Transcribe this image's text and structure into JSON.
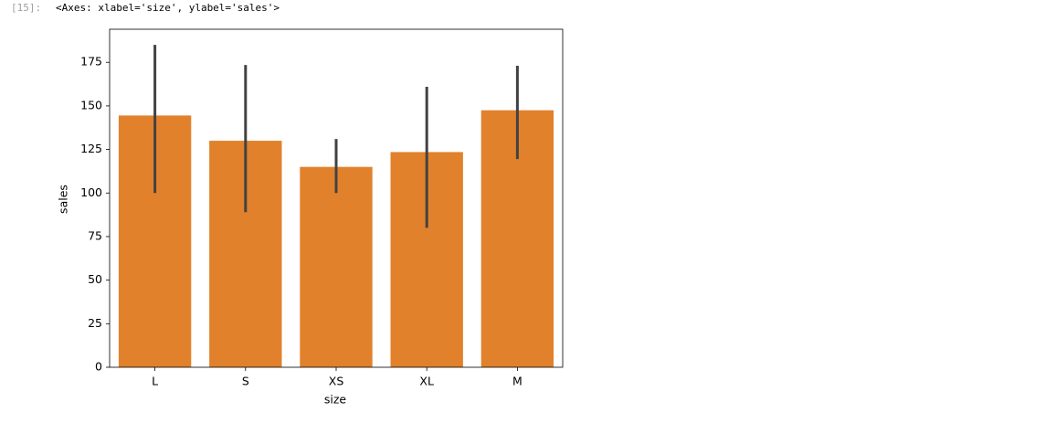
{
  "prompt": "[15]:",
  "output": "<Axes: xlabel='size', ylabel='sales'>",
  "chart_data": {
    "type": "bar",
    "x_label": "size",
    "y_label": "sales",
    "categories": [
      "L",
      "S",
      "XS",
      "XL",
      "M"
    ],
    "series": [
      {
        "color": "#e1812c",
        "error_color": "#424242",
        "values": [
          144.5,
          130,
          115,
          123.5,
          147.5
        ],
        "ci_low": [
          100,
          89,
          100,
          80,
          119.5
        ],
        "ci_high": [
          185,
          173.5,
          131,
          161,
          173
        ]
      }
    ],
    "ylim": [
      0,
      194
    ],
    "yticks": [
      0,
      25,
      50,
      75,
      100,
      125,
      150,
      175
    ],
    "grid": false
  }
}
